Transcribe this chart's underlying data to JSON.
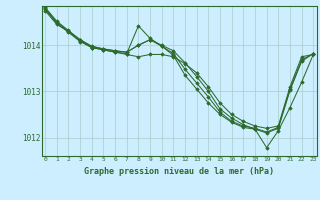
{
  "title": "Graphe pression niveau de la mer (hPa)",
  "bg_color": "#cceeff",
  "grid_color": "#aacccc",
  "line_color": "#2d6a2d",
  "ylim": [
    1011.6,
    1014.85
  ],
  "xlim": [
    -0.3,
    23.3
  ],
  "yticks": [
    1012,
    1013,
    1014
  ],
  "xticks": [
    0,
    1,
    2,
    3,
    4,
    5,
    6,
    7,
    8,
    9,
    10,
    11,
    12,
    13,
    14,
    15,
    16,
    17,
    18,
    19,
    20,
    21,
    22,
    23
  ],
  "series": [
    [
      1014.75,
      1014.45,
      1014.3,
      1014.1,
      1013.95,
      1013.9,
      1013.85,
      1013.8,
      1013.75,
      1013.8,
      1013.8,
      1013.75,
      1013.6,
      1013.4,
      1013.1,
      1012.75,
      1012.5,
      1012.35,
      1012.25,
      1012.2,
      1012.25,
      1013.1,
      1013.75,
      1013.8
    ],
    [
      1014.78,
      1014.48,
      1014.28,
      1014.08,
      1013.95,
      1013.9,
      1013.85,
      1013.82,
      1014.42,
      1014.15,
      1013.98,
      1013.78,
      1013.35,
      1013.05,
      1012.75,
      1012.5,
      1012.33,
      1012.22,
      1012.18,
      1011.78,
      1012.15,
      1012.65,
      1013.2,
      1013.8
    ],
    [
      1014.8,
      1014.5,
      1014.3,
      1014.12,
      1013.97,
      1013.92,
      1013.88,
      1013.85,
      1014.0,
      1014.12,
      1013.98,
      1013.82,
      1013.48,
      1013.18,
      1012.88,
      1012.55,
      1012.35,
      1012.25,
      1012.2,
      1012.12,
      1012.22,
      1013.05,
      1013.68,
      1013.82
    ],
    [
      1014.82,
      1014.52,
      1014.32,
      1014.12,
      1013.98,
      1013.92,
      1013.88,
      1013.85,
      1014.0,
      1014.12,
      1014.0,
      1013.88,
      1013.62,
      1013.32,
      1013.0,
      1012.62,
      1012.42,
      1012.28,
      1012.18,
      1012.1,
      1012.2,
      1013.02,
      1013.65,
      1013.82
    ]
  ]
}
